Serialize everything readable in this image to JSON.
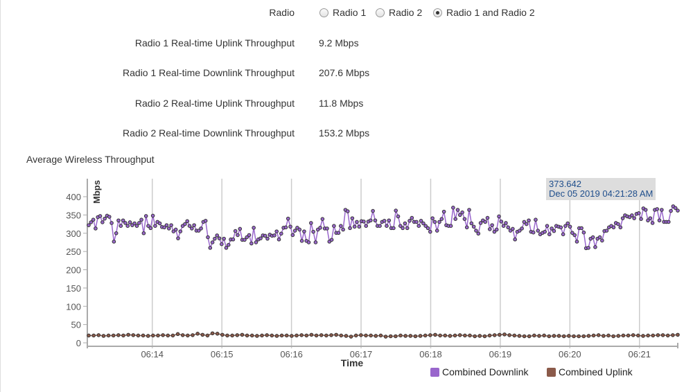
{
  "radio": {
    "label": "Radio",
    "options": [
      {
        "label": "Radio 1",
        "selected": false
      },
      {
        "label": "Radio 2",
        "selected": false
      },
      {
        "label": "Radio 1 and Radio 2",
        "selected": true
      }
    ]
  },
  "stats": [
    {
      "label": "Radio 1 Real-time Uplink Throughput",
      "value": "9.2 Mbps"
    },
    {
      "label": "Radio 1 Real-time Downlink Throughput",
      "value": "207.6 Mbps"
    },
    {
      "label": "Radio 2 Real-time Uplink Throughput",
      "value": "11.8 Mbps"
    },
    {
      "label": "Radio 2 Real-time Downlink Throughput",
      "value": "153.2 Mbps"
    }
  ],
  "section_title": "Average Wireless Throughput",
  "tooltip": {
    "value": "373.642",
    "time": "Dec 05 2019 04:21:28 AM"
  },
  "chart_data": {
    "type": "line",
    "xlabel": "Time",
    "ylabel": "Mbps",
    "x_range": [
      "06:13:04",
      "06:21:33"
    ],
    "x_ticks": [
      "06:14",
      "06:15",
      "06:16",
      "06:17",
      "06:18",
      "06:19",
      "06:20",
      "06:21"
    ],
    "ylim": [
      0,
      440
    ],
    "y_ticks": [
      0,
      50,
      100,
      150,
      200,
      250,
      300,
      350,
      400
    ],
    "grid": "vertical",
    "legend": "bottom-right",
    "series": [
      {
        "name": "Combined Downlink",
        "color": "#9966cc",
        "values": [
          322,
          330,
          337,
          313,
          344,
          347,
          330,
          340,
          348,
          345,
          328,
          277,
          300,
          335,
          320,
          335,
          328,
          320,
          330,
          322,
          327,
          320,
          328,
          337,
          300,
          347,
          320,
          314,
          348,
          320,
          331,
          327,
          317,
          316,
          322,
          313,
          322,
          305,
          310,
          286,
          305,
          320,
          325,
          333,
          320,
          313,
          322,
          307,
          307,
          313,
          331,
          334,
          289,
          260,
          275,
          285,
          294,
          286,
          270,
          285,
          260,
          268,
          283,
          283,
          306,
          295,
          312,
          282,
          282,
          289,
          295,
          272,
          315,
          275,
          283,
          286,
          294,
          293,
          285,
          296,
          293,
          294,
          305,
          283,
          299,
          315,
          316,
          340,
          318,
          295,
          307,
          315,
          310,
          279,
          305,
          279,
          275,
          328,
          304,
          275,
          310,
          315,
          339,
          313,
          313,
          277,
          282,
          320,
          301,
          301,
          320,
          310,
          364,
          360,
          314,
          341,
          318,
          331,
          318,
          333,
          332,
          320,
          332,
          335,
          361,
          335,
          320,
          320,
          331,
          334,
          320,
          335,
          314,
          314,
          362,
          346,
          320,
          314,
          327,
          314,
          334,
          342,
          331,
          331,
          320,
          334,
          327,
          320,
          314,
          304,
          341,
          331,
          307,
          331,
          339,
          359,
          322,
          320,
          320,
          370,
          339,
          364,
          350,
          357,
          339,
          316,
          364,
          327,
          318,
          307,
          299,
          328,
          335,
          331,
          342,
          311,
          322,
          304,
          310,
          346,
          332,
          320,
          328,
          316,
          307,
          312,
          283,
          304,
          307,
          313,
          331,
          325,
          335,
          304,
          302,
          337,
          307,
          297,
          301,
          304,
          320,
          297,
          313,
          306,
          320,
          318,
          316,
          297,
          320,
          327,
          318,
          301,
          295,
          277,
          314,
          314,
          302,
          259,
          260,
          285,
          289,
          262,
          285,
          289,
          280,
          306,
          307,
          316,
          320,
          316,
          328,
          325,
          316,
          341,
          349,
          346,
          344,
          349,
          341,
          353,
          355,
          339,
          368,
          364,
          335,
          341,
          328,
          364,
          366,
          335,
          364,
          331,
          331,
          331,
          361,
          373.642,
          369,
          362
        ]
      },
      {
        "name": "Combined Uplink",
        "color": "#8b5a4a",
        "values": [
          20,
          20,
          21,
          19,
          20,
          20,
          21,
          20,
          22,
          21,
          20,
          20,
          19,
          20,
          20,
          21,
          20,
          20,
          24,
          21,
          20,
          21,
          25,
          22,
          20,
          26,
          25,
          22,
          20,
          20,
          21,
          22,
          20,
          20,
          19,
          20,
          21,
          20,
          19,
          20,
          20,
          19,
          20,
          21,
          20,
          22,
          20,
          21,
          20,
          21,
          22,
          20,
          19,
          17,
          20,
          21,
          20,
          20,
          19,
          20,
          17,
          18,
          18,
          20,
          19,
          19,
          18,
          19,
          20,
          21,
          22,
          20,
          20,
          19,
          20,
          21,
          20,
          20,
          18,
          19,
          18,
          20,
          21,
          22,
          23,
          21,
          20,
          19,
          18,
          18,
          20,
          19,
          20,
          18,
          19,
          19,
          18,
          19,
          18,
          18,
          18,
          19,
          20,
          21,
          19,
          20,
          18,
          19,
          20,
          20,
          21,
          20,
          19,
          20,
          20,
          21,
          21,
          20,
          21,
          22
        ]
      }
    ]
  }
}
